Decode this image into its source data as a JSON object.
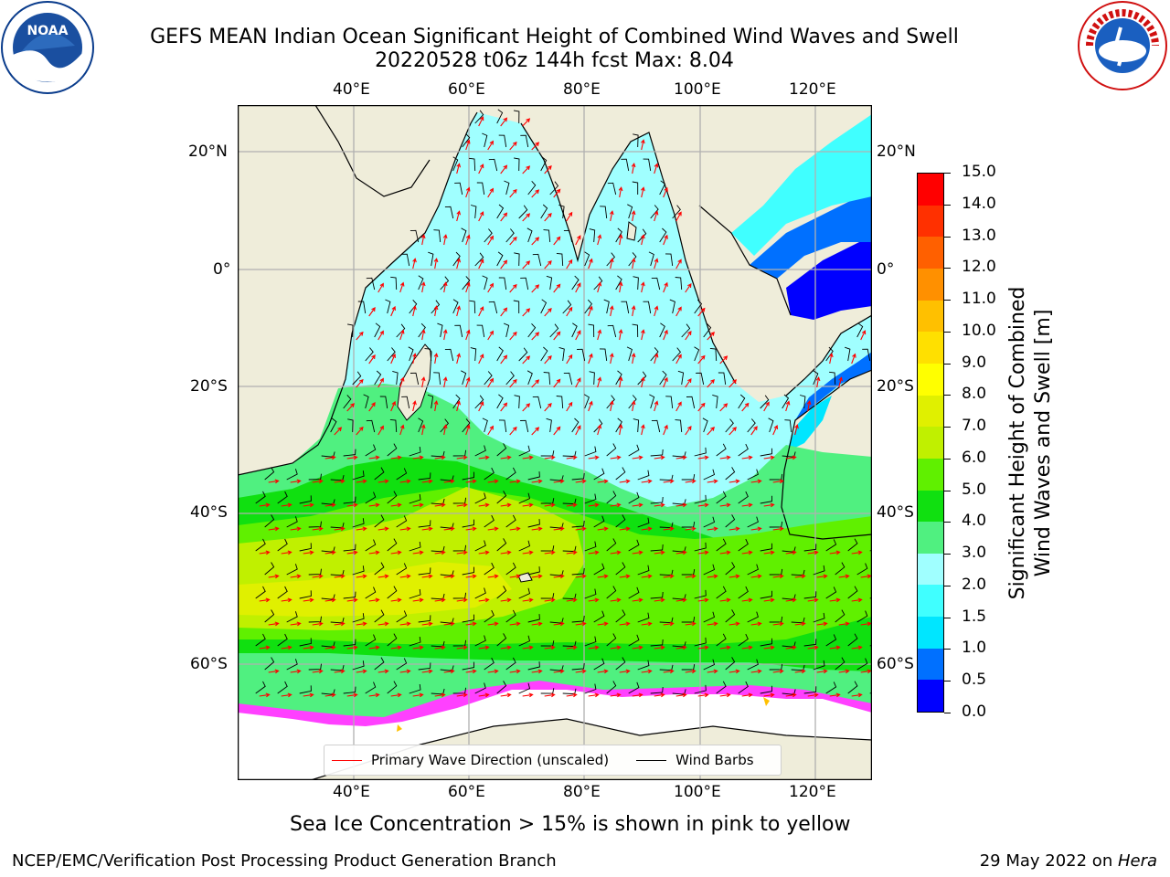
{
  "header": {
    "title_line1": "GEFS MEAN Indian Ocean Significant Height of Combined Wind Waves and Swell",
    "title_line2": "20220528 t06z 144h fcst   Max: 8.04"
  },
  "logos": {
    "left": {
      "icon": "noaa-logo",
      "text": "NOAA"
    },
    "right": {
      "icon": "national-weather-service-logo",
      "text": "NATIONAL WEATHER SERVICE"
    }
  },
  "map": {
    "lon_ticks": [
      "40°E",
      "60°E",
      "80°E",
      "100°E",
      "120°E"
    ],
    "lat_ticks": [
      "20°N",
      "0°",
      "20°S",
      "40°S",
      "60°S"
    ],
    "land_color": "#efedda",
    "ice_color": "#ffffff",
    "gridline_color": "#b0b0b0"
  },
  "legend": {
    "wave_label": "Primary Wave Direction (unscaled)",
    "wind_label": "Wind Barbs",
    "wave_color": "#ff0000",
    "wind_color": "#000000"
  },
  "colorbar": {
    "label_line1": "Significant Height of Combined",
    "label_line2": "Wind Waves and Swell [m]",
    "ticks": [
      "0.0",
      "0.5",
      "1.0",
      "1.5",
      "2.0",
      "3.0",
      "4.0",
      "5.0",
      "6.0",
      "7.0",
      "8.0",
      "9.0",
      "10.0",
      "11.0",
      "12.0",
      "13.0",
      "14.0",
      "15.0"
    ],
    "colors": [
      "#0000ff",
      "#0070ff",
      "#00e6ff",
      "#40ffff",
      "#a0ffff",
      "#50f080",
      "#10e010",
      "#60f000",
      "#c0f000",
      "#e0f000",
      "#ffff00",
      "#ffe000",
      "#ffc000",
      "#ff9000",
      "#ff6000",
      "#ff3000",
      "#ff0000"
    ]
  },
  "caption": "Sea Ice Concentration > 15% is shown in pink to yellow",
  "footer": {
    "left": "NCEP/EMC/Verification Post Processing Product Generation Branch",
    "right_date": "29 May 2022 on ",
    "right_host": "Hera"
  }
}
